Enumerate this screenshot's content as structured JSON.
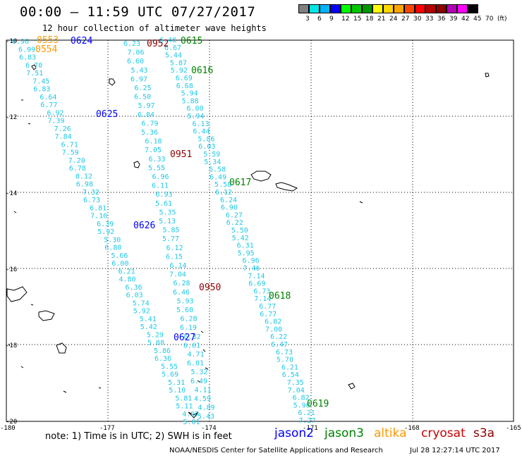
{
  "header": {
    "title": "00:00 – 11:59 UTC 07/27/2017",
    "subtitle": "12 hour collection of altimeter wave heights"
  },
  "colorbar": {
    "colors": [
      "#808080",
      "#00e6e6",
      "#00b4ff",
      "#0000ff",
      "#00ff00",
      "#00c800",
      "#009600",
      "#ffff00",
      "#ffd700",
      "#ffa500",
      "#ff4500",
      "#ff0000",
      "#b40000",
      "#8b0000",
      "#b400b4",
      "#ff00ff",
      "#000000"
    ],
    "labels": [
      "3",
      "6",
      "9",
      "12",
      "15",
      "18",
      "21",
      "24",
      "27",
      "30",
      "33",
      "36",
      "39",
      "42",
      "45",
      "70",
      "(ft)"
    ]
  },
  "map": {
    "lat_labels": [
      "-10",
      "-12",
      "-14",
      "-16",
      "-18",
      "-20"
    ],
    "lon_labels": [
      "-180",
      "-177",
      "-174",
      "-171",
      "-168",
      "-165"
    ],
    "pass_labels": [
      {
        "text": "0553",
        "color": "#ff9900"
      },
      {
        "text": "0554",
        "color": "#ff9900"
      },
      {
        "text": "0624",
        "color": "#0000ff"
      },
      {
        "text": "0952",
        "color": "#8b0000"
      },
      {
        "text": "0615",
        "color": "#008000"
      },
      {
        "text": "0616",
        "color": "#008000"
      },
      {
        "text": "0625",
        "color": "#0000ff"
      },
      {
        "text": "0951",
        "color": "#8b0000"
      },
      {
        "text": "0617",
        "color": "#008000"
      },
      {
        "text": "0626",
        "color": "#0000ff"
      },
      {
        "text": "0950",
        "color": "#8b0000"
      },
      {
        "text": "0618",
        "color": "#008000"
      },
      {
        "text": "0627",
        "color": "#0000ff"
      },
      {
        "text": "0619",
        "color": "#008000"
      }
    ],
    "track1": [
      "6.96",
      "6.99",
      "6.83",
      "6.70",
      "7.51",
      "7.45",
      "6.83",
      "6.64",
      "6.77",
      "6.92",
      "7.39",
      "7.26",
      "7.84",
      "6.71",
      "7.59",
      "7.20",
      "6.78",
      "8.12",
      "6.98",
      "7.32",
      "6.73",
      "6.81",
      "7.10",
      "6.39",
      "5.92",
      "5.30",
      "6.80",
      "5.66",
      "6.00",
      "6.21",
      "4.80",
      "6.36",
      "6.03",
      "5.74",
      "5.92",
      "5.41",
      "5.42",
      "5.29",
      "5.08",
      "5.86",
      "6.36",
      "5.55",
      "5.69",
      "5.31",
      "5.10",
      "5.81",
      "5.11",
      "4.97",
      "5.01"
    ],
    "track2": [
      "6.23",
      "7.06",
      "6.60",
      "5.43",
      "6.97",
      "6.25",
      "6.50",
      "5.97",
      "6.84",
      "6.79",
      "5.36",
      "6.18",
      "7.05",
      "6.33",
      "5.55",
      "6.96",
      "6.11",
      "6.93",
      "5.61",
      "5.35",
      "5.13",
      "5.85",
      "5.77",
      "6.12",
      "6.15",
      "6.14",
      "7.04",
      "6.28",
      "6.46",
      "5.93",
      "5.60",
      "6.28",
      "6.19",
      "6.32",
      "6.61",
      "4.71",
      "6.01",
      "5.32",
      "6.49",
      "4.11",
      "4.59",
      "4.89",
      "5.43"
    ],
    "track3": [
      "6.48",
      "6.67",
      "5.44",
      "5.87",
      "5.92",
      "6.69",
      "6.68",
      "5.94",
      "5.88",
      "6.00",
      "5.94",
      "6.13",
      "6.44",
      "5.86",
      "6.03",
      "5.59",
      "5.34",
      "5.58",
      "6.49",
      "5.58",
      "6.12",
      "6.24",
      "6.90",
      "6.27",
      "6.22",
      "5.50",
      "5.42",
      "6.31",
      "5.95",
      "6.96",
      "7.46",
      "7.14",
      "6.69",
      "6.73",
      "7.14",
      "6.77",
      "6.77",
      "6.82",
      "7.00",
      "6.22",
      "6.47",
      "6.73",
      "5.70",
      "6.21",
      "6.54",
      "7.35",
      "7.04",
      "6.82",
      "5.96",
      "6.21",
      "7.27"
    ]
  },
  "note": "note: 1) Time is in UTC; 2) SWH is in feet",
  "satellites": [
    {
      "name": "jason2",
      "color": "#0000ff"
    },
    {
      "name": "jason3",
      "color": "#008000"
    },
    {
      "name": "altika",
      "color": "#ff9900"
    },
    {
      "name": "cryosat",
      "color": "#cc0000"
    },
    {
      "name": "s3a",
      "color": "#8b0000"
    }
  ],
  "footer": {
    "credit": "NOAA/NESDIS Center for Satellite Applications and Research",
    "timestamp": "Jul 28 12:27:14 UTC 2017"
  },
  "track_color": "#1ec8e6"
}
